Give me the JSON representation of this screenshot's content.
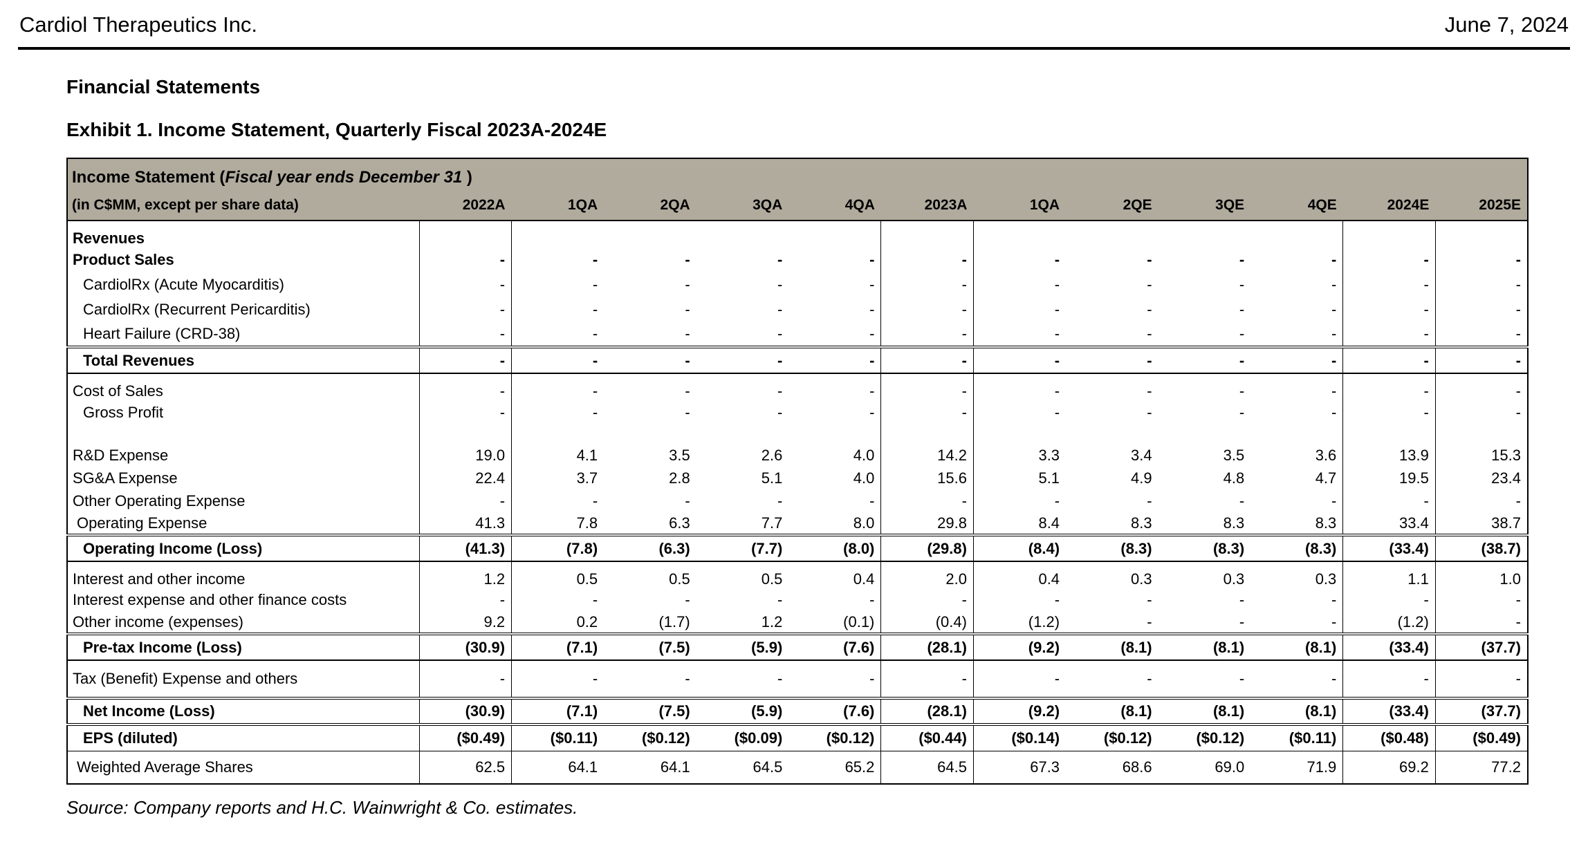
{
  "page": {
    "company": "Cardiol Therapeutics Inc.",
    "date": "June 7, 2024",
    "section_title": "Financial Statements",
    "exhibit_title": "Exhibit 1. Income Statement, Quarterly Fiscal 2023A-2024E",
    "source": "Source: Company reports and H.C. Wainwright & Co. estimates."
  },
  "colors": {
    "header_bg": "#b1ab9e",
    "border": "#000000"
  },
  "table": {
    "title_prefix": "Income Statement (",
    "title_italic": "Fiscal year ends December 31",
    "title_suffix": " )",
    "subtitle": "(in C$MM, except per share data)",
    "columns": [
      "2022A",
      "1QA",
      "2QA",
      "3QA",
      "4QA",
      "2023A",
      "1QA",
      "2QE",
      "3QE",
      "4QE",
      "2024E",
      "2025E"
    ],
    "rows": [
      {
        "kind": "section",
        "gap_before": true,
        "label": "Revenues",
        "values": [
          "",
          "",
          "",
          "",
          "",
          "",
          "",
          "",
          "",
          "",
          "",
          ""
        ]
      },
      {
        "kind": "section_values",
        "label": "Product Sales",
        "values": [
          "-",
          "-",
          "-",
          "-",
          "-",
          "-",
          "-",
          "-",
          "-",
          "-",
          "-",
          "-"
        ]
      },
      {
        "kind": "sub",
        "label": "CardiolRx (Acute Myocarditis)",
        "values": [
          "-",
          "-",
          "-",
          "-",
          "-",
          "-",
          "-",
          "-",
          "-",
          "-",
          "-",
          "-"
        ]
      },
      {
        "kind": "sub",
        "label": "CardiolRx (Recurrent Pericarditis)",
        "values": [
          "-",
          "-",
          "-",
          "-",
          "-",
          "-",
          "-",
          "-",
          "-",
          "-",
          "-",
          "-"
        ]
      },
      {
        "kind": "sub",
        "label": "Heart Failure (CRD-38)",
        "values": [
          "-",
          "-",
          "-",
          "-",
          "-",
          "-",
          "-",
          "-",
          "-",
          "-",
          "-",
          "-"
        ]
      },
      {
        "kind": "total",
        "box": "solid",
        "label": "Total Revenues",
        "values": [
          "-",
          "-",
          "-",
          "-",
          "-",
          "-",
          "-",
          "-",
          "-",
          "-",
          "-",
          "-"
        ]
      },
      {
        "kind": "item",
        "gap_before": true,
        "label": "Cost of Sales",
        "values": [
          "-",
          "-",
          "-",
          "-",
          "-",
          "-",
          "-",
          "-",
          "-",
          "-",
          "-",
          "-"
        ]
      },
      {
        "kind": "sub",
        "label": "Gross Profit",
        "values": [
          "-",
          "-",
          "-",
          "-",
          "-",
          "-",
          "-",
          "-",
          "-",
          "-",
          "-",
          "-"
        ]
      },
      {
        "kind": "spacer",
        "label": "",
        "values": [
          "",
          "",
          "",
          "",
          "",
          "",
          "",
          "",
          "",
          "",
          "",
          ""
        ]
      },
      {
        "kind": "item",
        "label": "R&D Expense",
        "values": [
          "19.0",
          "4.1",
          "3.5",
          "2.6",
          "4.0",
          "14.2",
          "3.3",
          "3.4",
          "3.5",
          "3.6",
          "13.9",
          "15.3"
        ]
      },
      {
        "kind": "item",
        "label": "SG&A Expense",
        "values": [
          "22.4",
          "3.7",
          "2.8",
          "5.1",
          "4.0",
          "15.6",
          "5.1",
          "4.9",
          "4.8",
          "4.7",
          "19.5",
          "23.4"
        ]
      },
      {
        "kind": "item",
        "label": "Other Operating Expense",
        "values": [
          "-",
          "-",
          "-",
          "-",
          "-",
          "-",
          "-",
          "-",
          "-",
          "-",
          "-",
          "-"
        ]
      },
      {
        "kind": "sub_small",
        "label": "Operating Expense",
        "values": [
          "41.3",
          "7.8",
          "6.3",
          "7.7",
          "8.0",
          "29.8",
          "8.4",
          "8.3",
          "8.3",
          "8.3",
          "33.4",
          "38.7"
        ]
      },
      {
        "kind": "total",
        "box": "solid",
        "label": "Operating Income (Loss)",
        "values": [
          "(41.3)",
          "(7.8)",
          "(6.3)",
          "(7.7)",
          "(8.0)",
          "(29.8)",
          "(8.4)",
          "(8.3)",
          "(8.3)",
          "(8.3)",
          "(33.4)",
          "(38.7)"
        ]
      },
      {
        "kind": "item",
        "gap_before": true,
        "label": "Interest and other income",
        "values": [
          "1.2",
          "0.5",
          "0.5",
          "0.5",
          "0.4",
          "2.0",
          "0.4",
          "0.3",
          "0.3",
          "0.3",
          "1.1",
          "1.0"
        ]
      },
      {
        "kind": "item",
        "label": "Interest expense and other finance costs",
        "values": [
          "-",
          "-",
          "-",
          "-",
          "-",
          "-",
          "-",
          "-",
          "-",
          "-",
          "-",
          "-"
        ]
      },
      {
        "kind": "item",
        "label": "Other income (expenses)",
        "values": [
          "9.2",
          "0.2",
          "(1.7)",
          "1.2",
          "(0.1)",
          "(0.4)",
          "(1.2)",
          "-",
          "-",
          "-",
          "(1.2)",
          "-"
        ]
      },
      {
        "kind": "total",
        "box": "solid",
        "label": "Pre-tax Income (Loss)",
        "values": [
          "(30.9)",
          "(7.1)",
          "(7.5)",
          "(5.9)",
          "(7.6)",
          "(28.1)",
          "(9.2)",
          "(8.1)",
          "(8.1)",
          "(8.1)",
          "(33.4)",
          "(37.7)"
        ]
      },
      {
        "kind": "tax",
        "label": "Tax (Benefit) Expense and others",
        "values": [
          "-",
          "-",
          "-",
          "-",
          "-",
          "-",
          "-",
          "-",
          "-",
          "-",
          "-",
          "-"
        ]
      },
      {
        "kind": "total",
        "box": "double",
        "label": "Net Income (Loss)",
        "values": [
          "(30.9)",
          "(7.1)",
          "(7.5)",
          "(5.9)",
          "(7.6)",
          "(28.1)",
          "(9.2)",
          "(8.1)",
          "(8.1)",
          "(8.1)",
          "(33.4)",
          "(37.7)"
        ]
      },
      {
        "kind": "total",
        "box": "thin",
        "label": "EPS (diluted)",
        "values": [
          "($0.49)",
          "($0.11)",
          "($0.12)",
          "($0.09)",
          "($0.12)",
          "($0.44)",
          "($0.14)",
          "($0.12)",
          "($0.12)",
          "($0.11)",
          "($0.48)",
          "($0.49)"
        ]
      },
      {
        "kind": "shares",
        "label": "Weighted Average Shares",
        "values": [
          "62.5",
          "64.1",
          "64.1",
          "64.5",
          "65.2",
          "64.5",
          "67.3",
          "68.6",
          "69.0",
          "71.9",
          "69.2",
          "77.2"
        ]
      }
    ]
  }
}
